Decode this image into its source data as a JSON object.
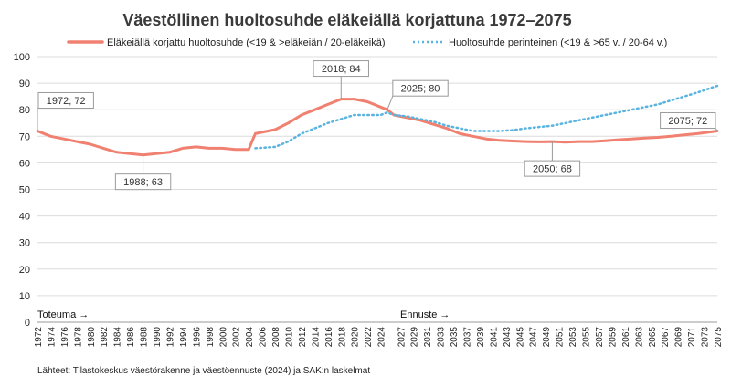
{
  "chart_data": {
    "type": "line",
    "title": "Väestöllinen huoltosuhde eläkeiällä korjattuna 1972–2075",
    "ylim": [
      0,
      100
    ],
    "yticks": [
      0,
      10,
      20,
      30,
      40,
      50,
      60,
      70,
      80,
      90,
      100
    ],
    "x_labels_step": 2,
    "x_labels_break": [
      2024,
      2027
    ],
    "xlim": [
      1972,
      2075
    ],
    "series": [
      {
        "name": "Eläkeiällä korjattu huoltosuhde (<19 & >eläkeiän / 20-eläkeikä)",
        "color": "#f08070",
        "style": "solid",
        "points": [
          [
            1972,
            72
          ],
          [
            1974,
            70
          ],
          [
            1976,
            69
          ],
          [
            1978,
            68
          ],
          [
            1980,
            67
          ],
          [
            1982,
            65.5
          ],
          [
            1984,
            64
          ],
          [
            1986,
            63.5
          ],
          [
            1988,
            63
          ],
          [
            1990,
            63.5
          ],
          [
            1992,
            64
          ],
          [
            1994,
            65.5
          ],
          [
            1996,
            66
          ],
          [
            1998,
            65.5
          ],
          [
            2000,
            65.5
          ],
          [
            2002,
            65
          ],
          [
            2004,
            65
          ],
          [
            2005,
            71
          ],
          [
            2006,
            71.5
          ],
          [
            2008,
            72.5
          ],
          [
            2010,
            75
          ],
          [
            2012,
            78
          ],
          [
            2014,
            80
          ],
          [
            2016,
            82
          ],
          [
            2018,
            84
          ],
          [
            2020,
            84
          ],
          [
            2022,
            83
          ],
          [
            2024,
            81
          ],
          [
            2025,
            80
          ],
          [
            2026,
            78
          ],
          [
            2028,
            77
          ],
          [
            2030,
            76
          ],
          [
            2032,
            74.5
          ],
          [
            2034,
            73
          ],
          [
            2036,
            71
          ],
          [
            2038,
            70
          ],
          [
            2040,
            69
          ],
          [
            2042,
            68.5
          ],
          [
            2044,
            68.2
          ],
          [
            2046,
            68
          ],
          [
            2048,
            67.9
          ],
          [
            2050,
            68
          ],
          [
            2052,
            67.8
          ],
          [
            2054,
            68
          ],
          [
            2056,
            68
          ],
          [
            2058,
            68.3
          ],
          [
            2060,
            68.7
          ],
          [
            2062,
            69
          ],
          [
            2064,
            69.3
          ],
          [
            2066,
            69.6
          ],
          [
            2068,
            70
          ],
          [
            2070,
            70.5
          ],
          [
            2072,
            71
          ],
          [
            2075,
            72
          ]
        ]
      },
      {
        "name": "Huoltosuhde perinteinen (<19 & >65 v. / 20-64 v.)",
        "color": "#5ab4e0",
        "style": "dotted",
        "points": [
          [
            2005,
            65.5
          ],
          [
            2008,
            66
          ],
          [
            2010,
            68
          ],
          [
            2012,
            71
          ],
          [
            2014,
            73
          ],
          [
            2016,
            75
          ],
          [
            2018,
            76.5
          ],
          [
            2020,
            78
          ],
          [
            2022,
            78
          ],
          [
            2024,
            78
          ],
          [
            2025,
            79
          ],
          [
            2026,
            78
          ],
          [
            2028,
            77.5
          ],
          [
            2030,
            76.5
          ],
          [
            2032,
            75.5
          ],
          [
            2034,
            74
          ],
          [
            2036,
            73
          ],
          [
            2038,
            72
          ],
          [
            2040,
            72
          ],
          [
            2042,
            72
          ],
          [
            2044,
            72.3
          ],
          [
            2046,
            73
          ],
          [
            2048,
            73.5
          ],
          [
            2050,
            74
          ],
          [
            2052,
            75
          ],
          [
            2054,
            76
          ],
          [
            2056,
            77
          ],
          [
            2058,
            78
          ],
          [
            2060,
            79
          ],
          [
            2062,
            80
          ],
          [
            2064,
            81
          ],
          [
            2066,
            82
          ],
          [
            2068,
            83.5
          ],
          [
            2070,
            85
          ],
          [
            2072,
            86.5
          ],
          [
            2075,
            89
          ]
        ]
      }
    ],
    "annotations": [
      {
        "label": "1972; 72",
        "x": 1972,
        "y": 72,
        "box_side": "above"
      },
      {
        "label": "1988; 63",
        "x": 1988,
        "y": 63,
        "box_side": "below"
      },
      {
        "label": "2018; 84",
        "x": 2018,
        "y": 84,
        "box_side": "above"
      },
      {
        "label": "2025; 80",
        "x": 2025,
        "y": 80,
        "box_side": "above-right"
      },
      {
        "label": "2050; 68",
        "x": 2050,
        "y": 68,
        "box_side": "below"
      },
      {
        "label": "2075; 72",
        "x": 2075,
        "y": 72,
        "box_side": "above-left"
      }
    ],
    "section_labels": {
      "history": "Toteuma →",
      "forecast": "Ennuste →"
    },
    "source": "Lähteet: Tilastokeskus väestörakenne ja väestöennuste (2024) ja SAK:n laskelmat"
  }
}
